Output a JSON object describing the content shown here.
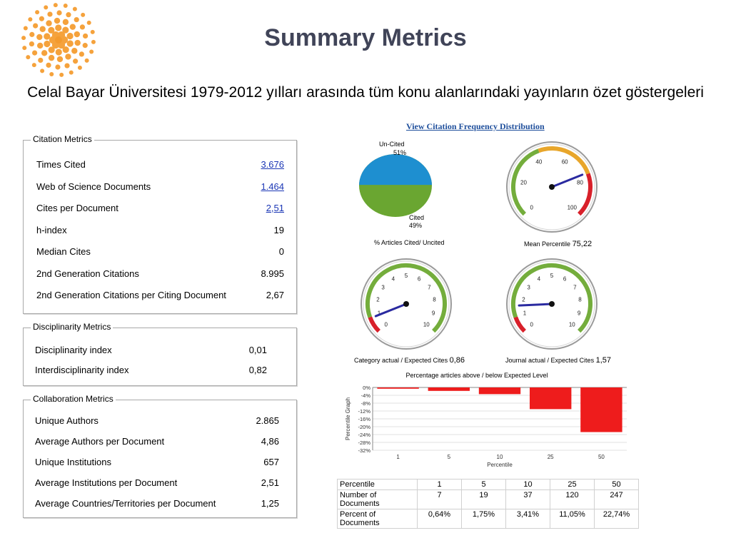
{
  "page": {
    "title": "Summary Metrics",
    "subtitle": "Celal Bayar Üniversitesi 1979-2012 yılları arasında tüm konu alanlarındaki yayınların özet göstergeleri",
    "view_link": "View Citation Frequency Distribution"
  },
  "citation_metrics": {
    "title": "Citation Metrics",
    "rows": [
      {
        "label": "Times Cited",
        "value": "3.676",
        "link": true
      },
      {
        "label": "Web of Science Documents",
        "value": "1.464",
        "link": true
      },
      {
        "label": "Cites per Document",
        "value": "2,51",
        "link": true
      },
      {
        "label": "h-index",
        "value": "19",
        "link": false
      },
      {
        "label": "Median Cites",
        "value": "0",
        "link": false
      },
      {
        "label": "2nd Generation Citations",
        "value": "8.995",
        "link": false
      },
      {
        "label": "2nd Generation Citations per Citing Document",
        "value": "2,67",
        "link": false
      }
    ]
  },
  "disciplinarity_metrics": {
    "title": "Disciplinarity Metrics",
    "rows": [
      {
        "label": "Disciplinarity index",
        "value": "0,01"
      },
      {
        "label": "Interdisciplinarity index",
        "value": "0,82"
      }
    ]
  },
  "collaboration_metrics": {
    "title": "Collaboration Metrics",
    "rows": [
      {
        "label": "Unique Authors",
        "value": "2.865"
      },
      {
        "label": "Average Authors per Document",
        "value": "4,86"
      },
      {
        "label": "Unique Institutions",
        "value": "657"
      },
      {
        "label": "Average Institutions per Document",
        "value": "2,51"
      },
      {
        "label": "Average Countries/Territories per Document",
        "value": "1,25"
      }
    ]
  },
  "pie": {
    "uncited_label": "Un-Cited",
    "uncited_pct": "51%",
    "uncited_value": 51,
    "cited_label": "Cited",
    "cited_pct": "49%",
    "cited_value": 49,
    "caption": "% Articles Cited/ Uncited",
    "colors": {
      "uncited": "#1e8fd0",
      "cited": "#6aa631"
    }
  },
  "gauges": [
    {
      "id": "mean-percentile",
      "ticks": [
        "0",
        "20",
        "40",
        "60",
        "80",
        "100"
      ],
      "min": 0,
      "max": 100,
      "value": 75.22,
      "caption_label": "Mean Percentile",
      "caption_value": "75,22"
    },
    {
      "id": "category-actual",
      "ticks": [
        "0",
        "1",
        "2",
        "3",
        "4",
        "5",
        "6",
        "7",
        "8",
        "9",
        "10"
      ],
      "min": 0,
      "max": 10,
      "value": 0.86,
      "caption_label": "Category actual / Expected Cites",
      "caption_value": "0,86"
    },
    {
      "id": "journal-actual",
      "ticks": [
        "0",
        "1",
        "2",
        "3",
        "4",
        "5",
        "6",
        "7",
        "8",
        "9",
        "10"
      ],
      "min": 0,
      "max": 10,
      "value": 1.57,
      "caption_label": "Journal actual / Expected Cites",
      "caption_value": "1,57"
    }
  ],
  "chart_data": {
    "type": "bar",
    "title": "Percentage articles above / below Expected Level",
    "xlabel": "Percentile",
    "ylabel": "Percentile Graph",
    "categories": [
      "1",
      "5",
      "10",
      "25",
      "50"
    ],
    "values": [
      -0.64,
      -1.75,
      -3.41,
      -11.05,
      -22.74
    ],
    "ylim": [
      -32,
      0
    ],
    "yticks": [
      "0%",
      "-4%",
      "-8%",
      "-12%",
      "-16%",
      "-20%",
      "-24%",
      "-28%",
      "-32%"
    ],
    "ytick_values": [
      0,
      -4,
      -8,
      -12,
      -16,
      -20,
      -24,
      -28,
      -32
    ],
    "bar_color": "#ee1c1c",
    "grid": true
  },
  "percentile_table": {
    "rows": [
      {
        "label": "Percentile",
        "cells": [
          "1",
          "5",
          "10",
          "25",
          "50"
        ]
      },
      {
        "label": "Number of Documents",
        "cells": [
          "7",
          "19",
          "37",
          "120",
          "247"
        ]
      },
      {
        "label": "Percent of Documents",
        "cells": [
          "0,64%",
          "1,75%",
          "3,41%",
          "11,05%",
          "22,74%"
        ]
      }
    ]
  }
}
